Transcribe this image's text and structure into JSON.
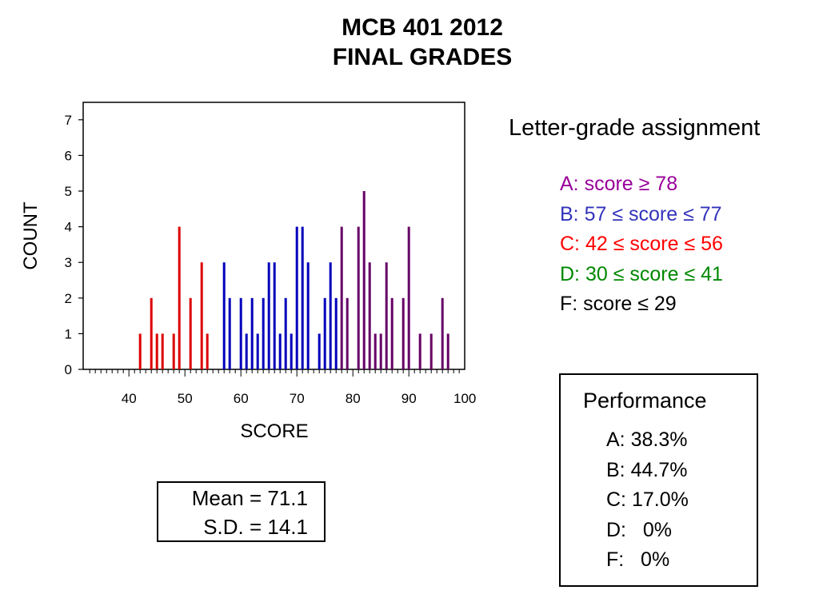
{
  "title": {
    "line1": "MCB 401 2012",
    "line2": "FINAL GRADES"
  },
  "chart_data": {
    "type": "bar",
    "xlabel": "SCORE",
    "ylabel": "COUNT",
    "xlim": [
      33,
      101
    ],
    "ylim": [
      0,
      7.4
    ],
    "x_ticks": [
      40,
      50,
      60,
      70,
      80,
      90,
      100
    ],
    "y_ticks": [
      0,
      1,
      2,
      3,
      4,
      5,
      6,
      7
    ],
    "grid": false,
    "legend": "none",
    "series": [
      {
        "color": "#dd0000",
        "x": [
          42,
          44,
          45,
          46,
          48,
          49,
          51,
          53,
          54
        ],
        "values": [
          1,
          2,
          1,
          1,
          1,
          4,
          2,
          3,
          1
        ]
      },
      {
        "color": "#0000bb",
        "x": [
          57,
          58,
          60,
          61,
          62,
          63,
          64,
          65,
          66,
          67,
          68,
          69,
          70,
          71,
          72,
          74,
          75,
          76,
          77
        ],
        "values": [
          3,
          2,
          2,
          1,
          2,
          1,
          2,
          3,
          3,
          1,
          2,
          1,
          4,
          4,
          3,
          1,
          2,
          3,
          2
        ]
      },
      {
        "color": "#660066",
        "x": [
          78,
          79,
          81,
          82,
          83,
          84,
          85,
          86,
          87,
          89,
          90,
          92,
          94,
          96,
          97
        ],
        "values": [
          4,
          2,
          4,
          5,
          3,
          1,
          1,
          3,
          2,
          2,
          4,
          1,
          1,
          2,
          1
        ]
      }
    ]
  },
  "grade_assignment": {
    "heading": "Letter-grade assignment",
    "rules": [
      {
        "text": "A: score ≥ 78",
        "color": "#990099"
      },
      {
        "text": "B: 57 ≤ score ≤ 77",
        "color": "#3333bb"
      },
      {
        "text": "C: 42 ≤ score ≤ 56",
        "color": "#ff0000"
      },
      {
        "text": "D: 30 ≤ score ≤ 41",
        "color": "#008800"
      },
      {
        "text": "F: score ≤ 29",
        "color": "#000000"
      }
    ]
  },
  "stats": {
    "mean": "Mean = 71.1",
    "sd": "S.D. = 14.1"
  },
  "performance": {
    "title": "Performance",
    "items": [
      "A: 38.3%",
      "B: 44.7%",
      "C: 17.0%",
      "D:   0%",
      "F:   0%"
    ]
  }
}
